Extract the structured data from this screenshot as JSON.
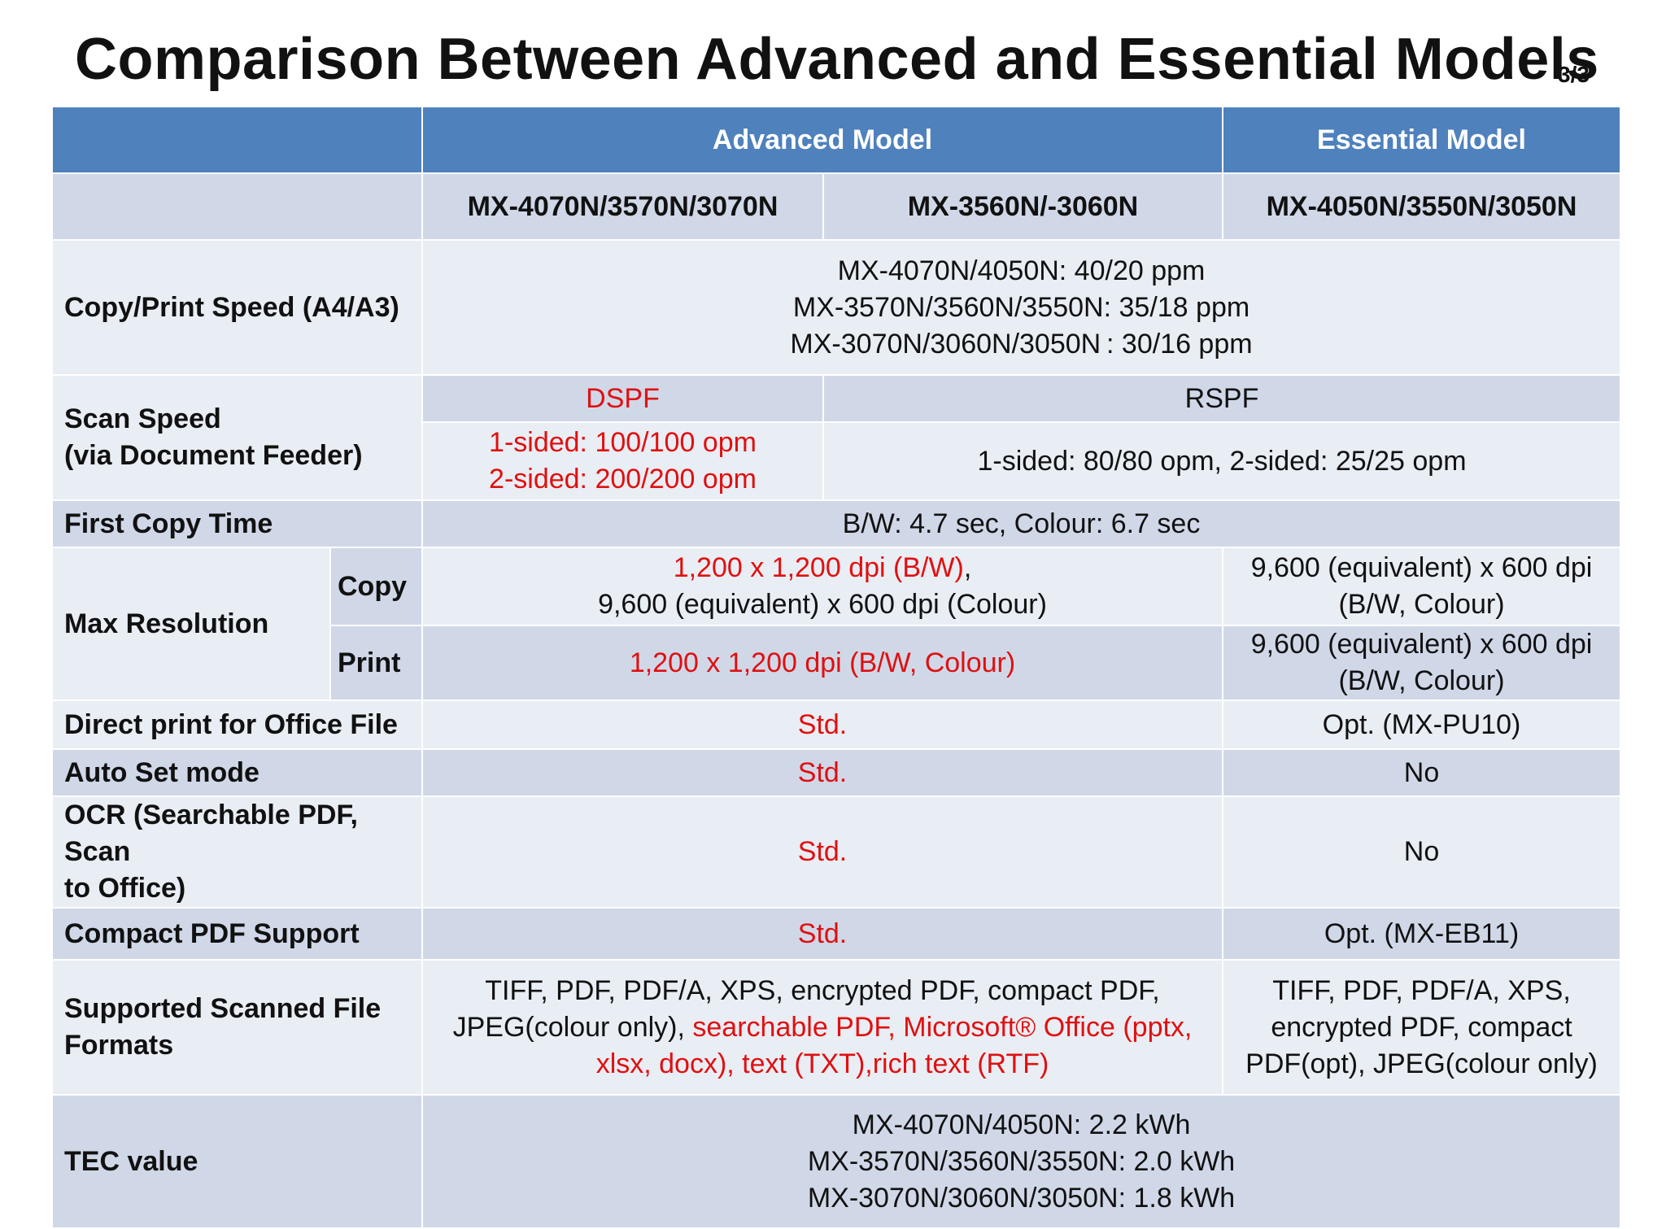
{
  "title": "Comparison Between Advanced and Essential Models",
  "page": "3/3",
  "header": {
    "advanced": "Advanced Model",
    "essential": "Essential Model"
  },
  "models": {
    "adv1": "MX-4070N/3570N/3070N",
    "adv2": "MX-3560N/-3060N",
    "ess": "MX-4050N/3550N/3050N"
  },
  "rows": {
    "copy_speed": {
      "label": "Copy/Print Speed  (A4/A3)",
      "lines": [
        "MX-4070N/4050N: 40/20 ppm",
        "MX-3570N/3560N/3550N: 35/18 ppm",
        "MX-3070N/3060N/3050N : 30/16 ppm"
      ]
    },
    "scan_speed": {
      "label1": "Scan Speed",
      "label2": "(via Document Feeder)",
      "adv_feeder": "DSPF",
      "ess_feeder": "RSPF",
      "adv_speed1": "1-sided: 100/100 opm",
      "adv_speed2": "2-sided: 200/200 opm",
      "ess_speed": "1-sided: 80/80 opm, 2-sided: 25/25 opm"
    },
    "first_copy": {
      "label": "First Copy Time",
      "value": "B/W: 4.7 sec, Colour: 6.7 sec"
    },
    "max_res": {
      "label": "Max Resolution",
      "copy_label": "Copy",
      "print_label": "Print",
      "copy_adv_1": "1,200 x 1,200 dpi (B/W)",
      "copy_adv_1_suffix": ",",
      "copy_adv_2": "9,600 (equivalent) x 600 dpi (Colour)",
      "copy_ess_1": "9,600 (equivalent) x 600 dpi",
      "copy_ess_2": "(B/W, Colour)",
      "print_adv": "1,200 x 1,200 dpi  (B/W, Colour)",
      "print_ess_1": "9,600 (equivalent) x 600 dpi",
      "print_ess_2": "(B/W, Colour)"
    },
    "direct_print": {
      "label": "Direct print for Office File",
      "adv": "Std.",
      "ess": "Opt. (MX-PU10)"
    },
    "auto_set": {
      "label": "Auto Set mode",
      "adv": "Std.",
      "ess": "No"
    },
    "ocr": {
      "label1": "OCR (Searchable  PDF, Scan",
      "label2": "to Office)",
      "adv": "Std.",
      "ess": "No"
    },
    "compact_pdf": {
      "label": "Compact PDF Support",
      "adv": "Std.",
      "ess": "Opt. (MX-EB11)"
    },
    "formats": {
      "label1": "Supported Scanned File",
      "label2": "Formats",
      "adv_line1": "TIFF, PDF, PDF/A, XPS, encrypted PDF, compact PDF,",
      "adv_line2_black": "JPEG(colour only), ",
      "adv_line2_red": "searchable PDF, Microsoft® Office (pptx,",
      "adv_line3_red": "xlsx, docx), text (TXT),rich text (RTF)",
      "ess_line1": "TIFF, PDF, PDF/A, XPS,",
      "ess_line2": "encrypted PDF, compact",
      "ess_line3": "PDF(opt), JPEG(colour only)"
    },
    "tec": {
      "label": "TEC value",
      "lines": [
        "MX-4070N/4050N: 2.2 kWh",
        "MX-3570N/3560N/3550N: 2.0 kWh",
        "MX-3070N/3060N/3050N: 1.8 kWh"
      ]
    }
  },
  "colors": {
    "header": "#4f81bd",
    "row_dark": "#d0d8e8",
    "row_light": "#e9edf4",
    "highlight": "#e01010"
  }
}
